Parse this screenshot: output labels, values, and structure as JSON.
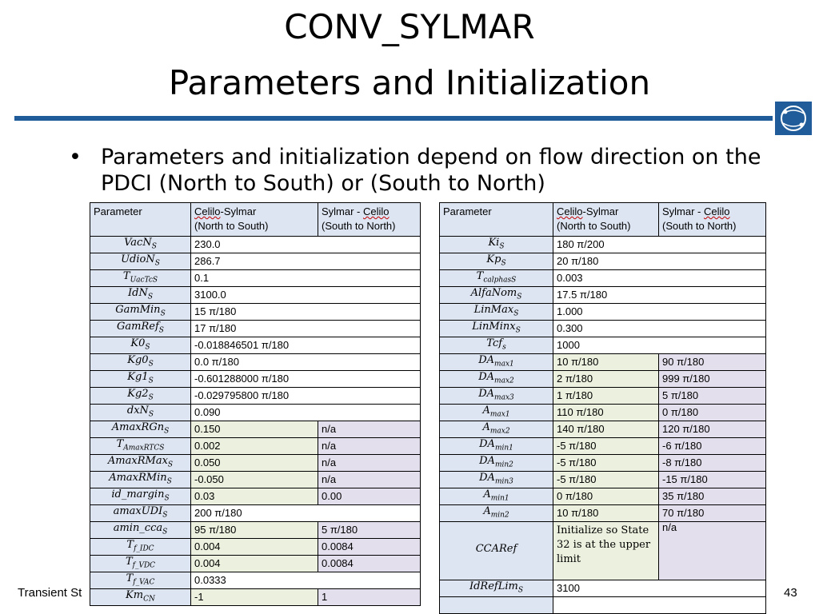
{
  "title_line1": "CONV_SYLMAR",
  "title_line2": "Parameters and Initialization",
  "bullet": "Parameters and initialization depend on flow direction on the PDCI (North to South) or (South to North)",
  "bullet_marker": "•",
  "footer_left": "Transient St",
  "page_number": "43",
  "header": {
    "parameter": "Parameter",
    "col1_a": "Celilo",
    "col1_b": "-Sylmar",
    "col1_c": "(North to South)",
    "col2_a": "Sylmar - ",
    "col2_b": "Celilo",
    "col2_c": "(South to North)"
  },
  "left_rows": [
    {
      "base": "VacN",
      "sub": "S",
      "v1": "230.0",
      "v2": ""
    },
    {
      "base": "UdioN",
      "sub": "S",
      "v1": "286.7",
      "v2": ""
    },
    {
      "base": "T",
      "sub": "UacTcS",
      "v1": "0.1",
      "v2": ""
    },
    {
      "base": "IdN",
      "sub": "S",
      "v1": "3100.0",
      "v2": ""
    },
    {
      "base": "GamMin",
      "sub": "S",
      "v1": "15 π/180",
      "v2": ""
    },
    {
      "base": "GamRef",
      "sub": "S",
      "v1": "17 π/180",
      "v2": ""
    },
    {
      "base": "K0",
      "sub": "S",
      "v1": "-0.018846501 π/180",
      "v2": ""
    },
    {
      "base": "Kg0",
      "sub": "S",
      "v1": "0.0 π/180",
      "v2": ""
    },
    {
      "base": "Kg1",
      "sub": "S",
      "v1": "-0.601288000 π/180",
      "v2": ""
    },
    {
      "base": "Kg2",
      "sub": "S",
      "v1": "-0.029795800 π/180",
      "v2": ""
    },
    {
      "base": "dxN",
      "sub": "S",
      "v1": "0.090",
      "v2": ""
    },
    {
      "base": "AmaxRGn",
      "sub": "S",
      "v1": "0.150",
      "v2": "n/a"
    },
    {
      "base": "T",
      "sub": "AmaxRTCS",
      "v1": "0.002",
      "v2": "n/a"
    },
    {
      "base": "AmaxRMax",
      "sub": "S",
      "v1": "0.050",
      "v2": "n/a"
    },
    {
      "base": "AmaxRMin",
      "sub": "S",
      "v1": "-0.050",
      "v2": "n/a"
    },
    {
      "base": "id_margin",
      "sub": "S",
      "v1": "0.03",
      "v2": "0.00"
    },
    {
      "base": "amaxUDI",
      "sub": "S",
      "v1": "200 π/180",
      "v2": ""
    },
    {
      "base": "amin_cca",
      "sub": "S",
      "v1": "95 π/180",
      "v2": "5 π/180"
    },
    {
      "base": "T",
      "sub": "f_IDC",
      "v1": "0.004",
      "v2": "0.0084"
    },
    {
      "base": "T",
      "sub": "f_VDC",
      "v1": "0.004",
      "v2": "0.0084"
    },
    {
      "base": "T",
      "sub": "f_VAC",
      "v1": "0.0333",
      "v2": ""
    },
    {
      "base": "Km",
      "sub": "CN",
      "v1": "-1",
      "v2": "1"
    }
  ],
  "right_rows": [
    {
      "base": "Ki",
      "sub": "S",
      "v1": "180 π/200",
      "v2": ""
    },
    {
      "base": "Kp",
      "sub": "S",
      "v1": "20 π/180",
      "v2": ""
    },
    {
      "base": "T",
      "sub": "calphasS",
      "v1": "0.003",
      "v2": ""
    },
    {
      "base": "AlfaNom",
      "sub": "S",
      "v1": "17.5 π/180",
      "v2": ""
    },
    {
      "base": "LinMax",
      "sub": "S",
      "v1": "1.000",
      "v2": ""
    },
    {
      "base": "LinMinx",
      "sub": "S",
      "v1": "0.300",
      "v2": ""
    },
    {
      "base": "Tcf",
      "sub": "s",
      "v1": "1000",
      "v2": ""
    },
    {
      "base": "DA",
      "sub": "max1",
      "v1": "10 π/180",
      "v2": "90 π/180"
    },
    {
      "base": "DA",
      "sub": "max2",
      "v1": "2 π/180",
      "v2": "999 π/180"
    },
    {
      "base": "DA",
      "sub": "max3",
      "v1": "1 π/180",
      "v2": "5 π/180"
    },
    {
      "base": "A",
      "sub": "max1",
      "v1": "110 π/180",
      "v2": "0 π/180"
    },
    {
      "base": "A",
      "sub": "max2",
      "v1": "140 π/180",
      "v2": "120 π/180"
    },
    {
      "base": "DA",
      "sub": "min1",
      "v1": "-5 π/180",
      "v2": "-6 π/180"
    },
    {
      "base": "DA",
      "sub": "min2",
      "v1": "-5 π/180",
      "v2": "-8 π/180"
    },
    {
      "base": "DA",
      "sub": "min3",
      "v1": "-5 π/180",
      "v2": "-15 π/180"
    },
    {
      "base": "A",
      "sub": "min1",
      "v1": "0 π/180",
      "v2": "35 π/180"
    },
    {
      "base": "A",
      "sub": "min2",
      "v1": "10 π/180",
      "v2": "70 π/180"
    },
    {
      "base": "CCARef",
      "sub": "",
      "v1": "Initialize so State 32 is at the upper limit",
      "v2": "n/a"
    },
    {
      "base": "IdRefLim",
      "sub": "S",
      "v1": "3100",
      "v2": ""
    },
    {
      "base": "",
      "sub": "",
      "v1": "",
      "v2": ""
    }
  ],
  "colors": {
    "rule": "#1f5c99",
    "param_bg": "#dde5f2",
    "green": "#ebf1de",
    "violet": "#e4dfec"
  }
}
